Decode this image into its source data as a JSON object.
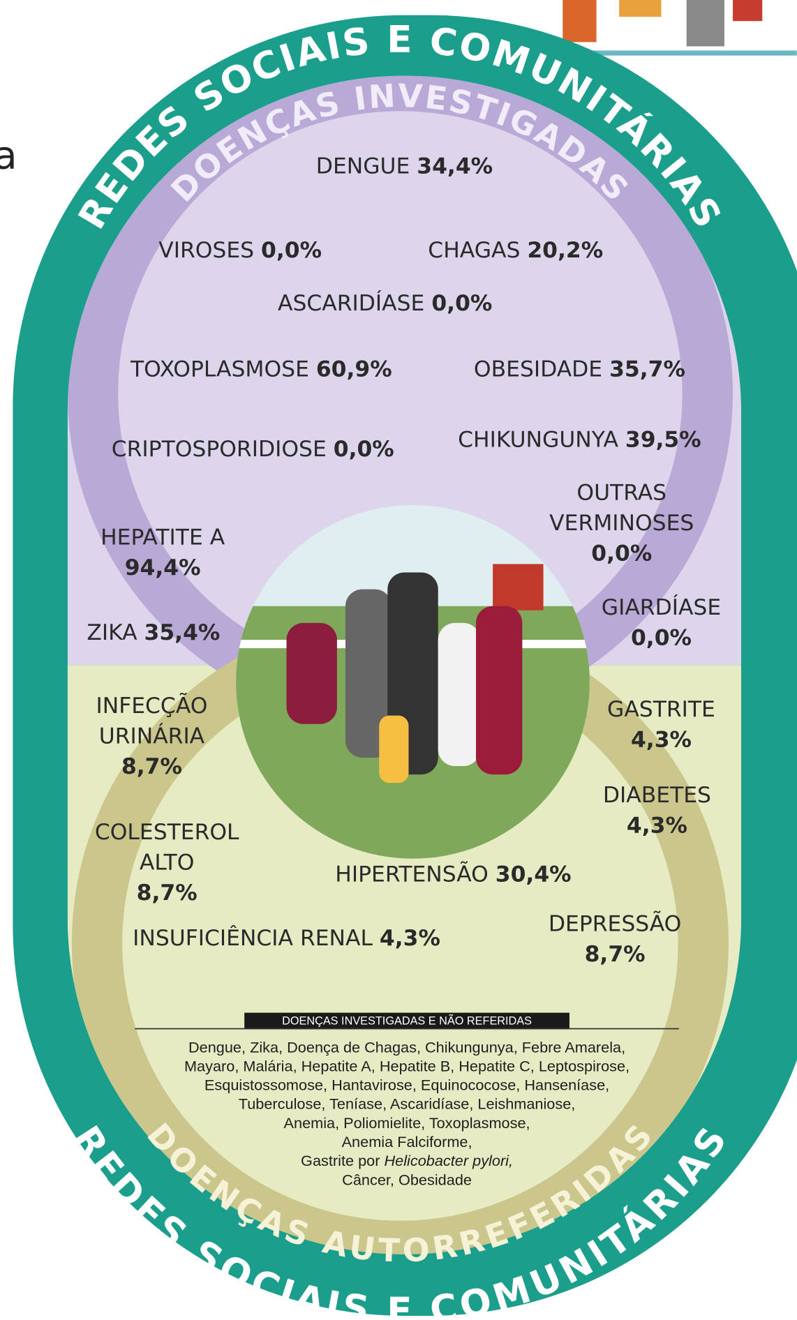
{
  "fragment": "a",
  "top_ring": "REDES SOCIAIS E COMUNITÁRIAS",
  "bottom_ring": "REDES SOCIAIS E COMUNITÁRIAS",
  "investigated": {
    "title": "DOENÇAS INVESTIGADAS",
    "items": [
      {
        "label": "DENGUE",
        "value": "34,4%"
      },
      {
        "label": "VIROSES",
        "value": "0,0%"
      },
      {
        "label": "CHAGAS",
        "value": "20,2%"
      },
      {
        "label": "ASCARIDÍASE",
        "value": "0,0%"
      },
      {
        "label": "TOXOPLASMOSE",
        "value": "60,9%"
      },
      {
        "label": "OBESIDADE",
        "value": "35,7%"
      },
      {
        "label": "CRIPTOSPORIDIOSE",
        "value": "0,0%"
      },
      {
        "label": "CHIKUNGUNYA",
        "value": "39,5%"
      },
      {
        "label": [
          "OUTRAS",
          "VERMINOSES"
        ],
        "value": "0,0%"
      },
      {
        "label": [
          "HEPATITE A"
        ],
        "value": "94,4%"
      },
      {
        "label": "ZIKA",
        "value": "35,4%"
      },
      {
        "label": [
          "GIARDÍASE"
        ],
        "value": "0,0%"
      }
    ]
  },
  "self_reported": {
    "title": "DOENÇAS AUTORREFERIDAS",
    "items": [
      {
        "label": [
          "INFECÇÃO",
          "URINÁRIA"
        ],
        "value": "8,7%"
      },
      {
        "label": [
          "GASTRITE"
        ],
        "value": "4,3%"
      },
      {
        "label": [
          "DIABETES"
        ],
        "value": "4,3%"
      },
      {
        "label": [
          "COLESTEROL",
          "ALTO"
        ],
        "value": "8,7%"
      },
      {
        "label": "HIPERTENSÃO",
        "value": "30,4%"
      },
      {
        "label": "INSUFICIÊNCIA RENAL",
        "value": "4,3%"
      },
      {
        "label": [
          "DEPRESSÃO"
        ],
        "value": "8,7%"
      }
    ]
  },
  "not_reported": {
    "heading": "DOENÇAS INVESTIGADAS E NÃO REFERIDAS",
    "lines": [
      "Dengue, Zika, Doença de Chagas, Chikungunya, Febre Amarela,",
      "Mayaro, Malária, Hepatite A, Hepatite B, Hepatite C, Leptospirose,",
      "Esquistossomose, Hantavirose, Equinococose, Hanseníase,",
      "Tuberculose, Teníase, Ascaridíase, Leishmaniose,",
      "Anemia, Poliomielite, Toxoplasmose,",
      "Anemia Falciforme,",
      [
        "Gastrite por ",
        "Helicobacter pylori,"
      ],
      "Câncer, Obesidade"
    ]
  }
}
